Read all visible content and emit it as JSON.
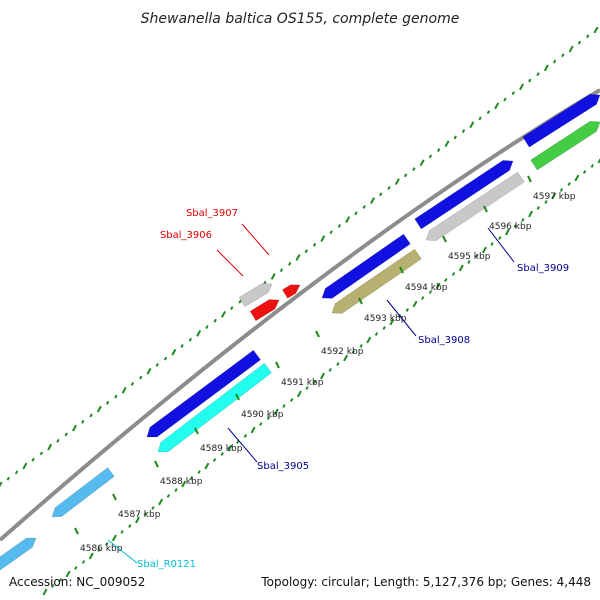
{
  "title": "Shewanella baltica OS155, complete genome",
  "footer": {
    "accession": "Accession: NC_009052",
    "info": "Topology: circular; Length: 5,127,376 bp; Genes: 4,448"
  },
  "colors": {
    "backbone": "#8c8c8c",
    "dots": "#1e8a1e",
    "blue": "#1010e0",
    "cyan": "#22ffee",
    "lightblue": "#55bbee",
    "gray": "#c8c8c8",
    "olive": "#b8b070",
    "green": "#44cc44",
    "red": "#ee1111",
    "label_blue": "#00008b",
    "label_cyan": "#00bcd4",
    "label_red": "#dd0000"
  },
  "ticks": [
    {
      "label": "4586 kbp"
    },
    {
      "label": "4587 kbp"
    },
    {
      "label": "4588 kbp"
    },
    {
      "label": "4589 kbp"
    },
    {
      "label": "4590 kbp"
    },
    {
      "label": "4591 kbp"
    },
    {
      "label": "4592 kbp"
    },
    {
      "label": "4593 kbp"
    },
    {
      "label": "4594 kbp"
    },
    {
      "label": "4595 kbp"
    },
    {
      "label": "4596 kbp"
    },
    {
      "label": "4597 kbp"
    }
  ],
  "gene_labels": [
    {
      "text": "Sbal_R0121",
      "color": "label_cyan"
    },
    {
      "text": "Sbal_3905",
      "color": "label_blue"
    },
    {
      "text": "Sbal_3906",
      "color": "label_red"
    },
    {
      "text": "Sbal_3907",
      "color": "label_red"
    },
    {
      "text": "Sbal_3908",
      "color": "label_blue"
    },
    {
      "text": "Sbal_3909",
      "color": "label_blue"
    }
  ]
}
